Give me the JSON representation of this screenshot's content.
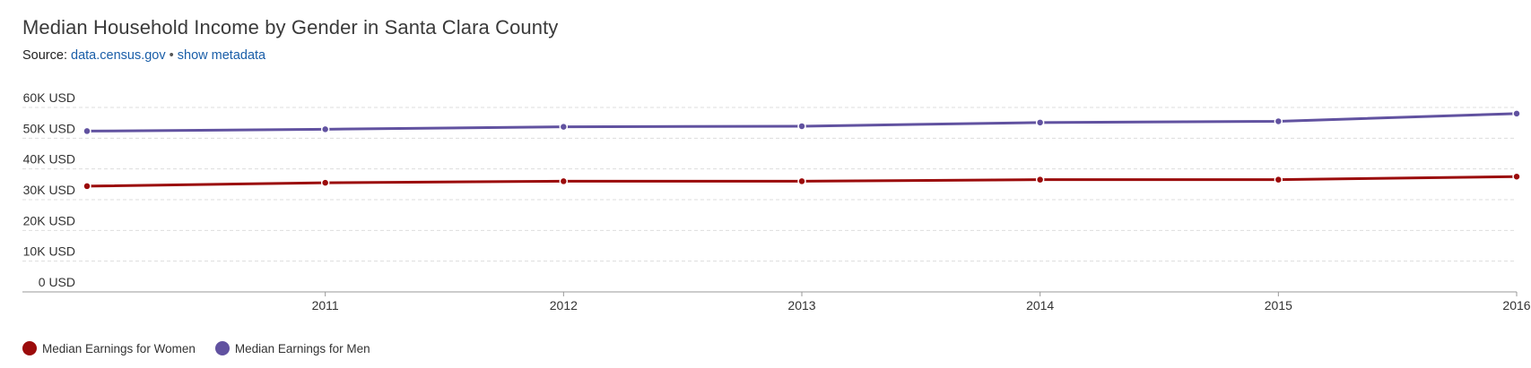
{
  "header": {
    "title": "Median Household Income by Gender in Santa Clara County",
    "source_prefix": "Source:",
    "source_link": "data.census.gov",
    "separator": "•",
    "metadata_link": "show metadata"
  },
  "colors": {
    "women": "#9b0b0b",
    "men": "#6152a0",
    "grid": "#dddddd",
    "axis": "#999999"
  },
  "chart_data": {
    "type": "line",
    "title": "Median Household Income by Gender in Santa Clara County",
    "xlabel": "",
    "ylabel": "",
    "x": [
      2010,
      2011,
      2012,
      2013,
      2014,
      2015,
      2016
    ],
    "x_tick_labels": [
      "2011",
      "2012",
      "2013",
      "2014",
      "2015",
      "2016"
    ],
    "y_tick_labels": [
      "60K USD",
      "50K USD",
      "40K USD",
      "30K USD",
      "20K USD",
      "10K USD",
      "0 USD"
    ],
    "y_ticks": [
      60000,
      50000,
      40000,
      30000,
      20000,
      10000,
      0
    ],
    "xlim": [
      2010,
      2016
    ],
    "ylim": [
      0,
      60000
    ],
    "grid": true,
    "legend_position": "bottom-left",
    "series": [
      {
        "name": "Median Earnings for Women",
        "color": "#9b0b0b",
        "values": [
          34400,
          35500,
          36000,
          36000,
          36500,
          36500,
          37500
        ]
      },
      {
        "name": "Median Earnings for Men",
        "color": "#6152a0",
        "values": [
          52300,
          52900,
          53700,
          53900,
          55100,
          55500,
          58000
        ]
      }
    ]
  }
}
